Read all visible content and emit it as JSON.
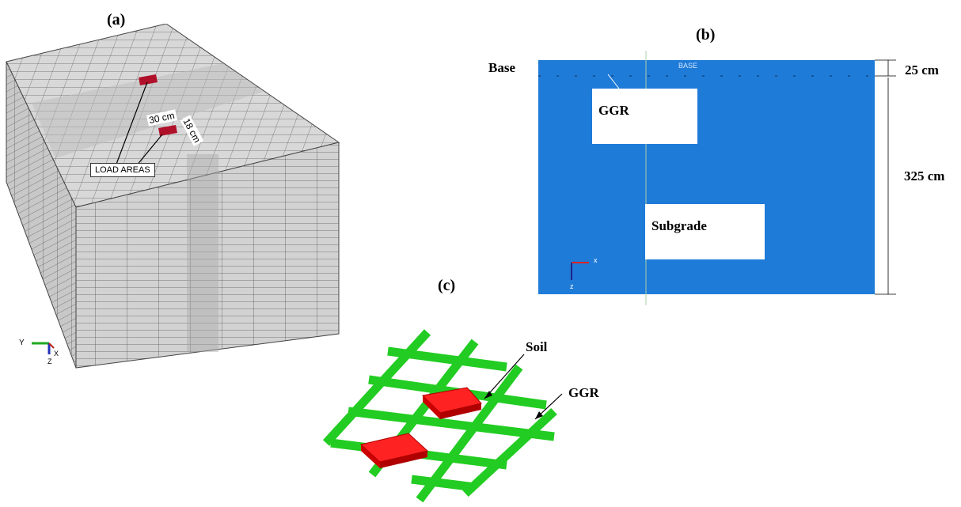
{
  "panel_a": {
    "label": "(a)",
    "dim_top": "30 cm",
    "dim_side": "18 cm",
    "callout": "LOAD AREAS",
    "axes": {
      "y": "Y",
      "x": "X",
      "z": "Z"
    }
  },
  "panel_b": {
    "label": "(b)",
    "base_side_label": "Base",
    "base_inner_label": "BASE",
    "ggr_label": "GGR",
    "subgrade_label": "Subgrade",
    "dim_top": "25 cm",
    "dim_bottom": "325 cm",
    "axes": {
      "x": "x",
      "z": "z"
    }
  },
  "panel_c": {
    "label": "(c)",
    "soil_label": "Soil",
    "ggr_label": "GGR"
  },
  "colors": {
    "mesh_face": "#cfcfcf",
    "mesh_line": "#4a4a4a",
    "load_area": "#b0102a",
    "base_blue": "#1f7bd8",
    "geogrid_green": "#22cc22",
    "soil_red": "#ee1111"
  }
}
